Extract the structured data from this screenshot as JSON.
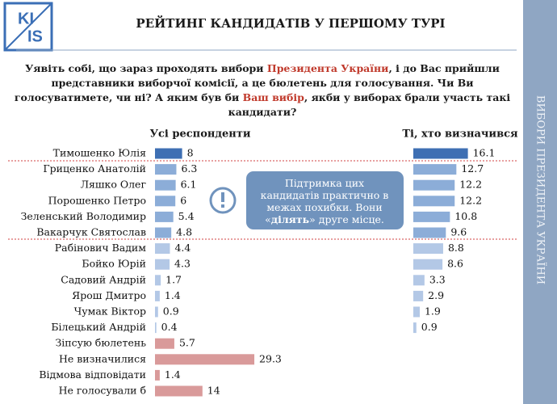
{
  "logo": [
    "KI",
    "IS"
  ],
  "title": "РЕЙТИНГ КАНДИДАТІВ У ПЕРШОМУ ТУРІ",
  "side_label": "ВИБОРИ ПРЕЗИДЕНТА УКРАЇНИ",
  "question": [
    [
      {
        "text": "Уявіть собі, що зараз проходять вибори ",
        "highlight": false
      },
      {
        "text": "Президента України",
        "highlight": true
      },
      {
        "text": ", і до Вас прийшли",
        "highlight": false
      }
    ],
    [
      {
        "text": "представники виборчої комісії, а це бюлетень для голосування. Чи Ви",
        "highlight": false
      }
    ],
    [
      {
        "text": "голосуватимете, чи ні? А яким був би ",
        "highlight": false
      },
      {
        "text": "Ваш вибір",
        "highlight": true
      },
      {
        "text": ", якби у виборах брали участь такі",
        "highlight": false
      }
    ],
    [
      {
        "text": "кандидати?",
        "highlight": false
      }
    ]
  ],
  "callout": [
    [
      {
        "text": "Підтримка цих",
        "bold": false
      }
    ],
    [
      {
        "text": "кандидатів практично в",
        "bold": false
      }
    ],
    [
      {
        "text": "межах похибки. Вони",
        "bold": false
      }
    ],
    [
      {
        "text": "«",
        "bold": false
      },
      {
        "text": "ділять",
        "bold": true
      },
      {
        "text": "» друге місце.",
        "bold": false
      }
    ]
  ],
  "chart_data": [
    {
      "type": "bar",
      "orientation": "horizontal",
      "title": "Усі респонденти",
      "categories": [
        "Тимошенко Юлія",
        "Гриценко Анатолій",
        "Ляшко Олег",
        "Порошенко Петро",
        "Зеленський Володимир",
        "Вакарчук Святослав",
        "Рабінович Вадим",
        "Бойко Юрій",
        "Садовий Андрій",
        "Ярош Дмитро",
        "Чумак Віктор",
        "Білецький Андрій",
        "Зіпсую бюлетень",
        "Не визначилися",
        "Відмова відповідати",
        "Не голосували б"
      ],
      "values": [
        8,
        6.3,
        6.1,
        6,
        5.4,
        4.8,
        4.4,
        4.3,
        1.7,
        1.4,
        0.9,
        0.4,
        5.7,
        29.3,
        1.4,
        14
      ],
      "colors": [
        "#3e6fb3",
        "#8cadd8",
        "#8cadd8",
        "#8cadd8",
        "#8cadd8",
        "#8cadd8",
        "#b3c8e6",
        "#b3c8e6",
        "#b3c8e6",
        "#b3c8e6",
        "#b3c8e6",
        "#b3c8e6",
        "#d99a9a",
        "#d99a9a",
        "#d99a9a",
        "#d99a9a"
      ],
      "xlim": [
        0,
        30
      ]
    },
    {
      "type": "bar",
      "orientation": "horizontal",
      "title": "Ті, хто визначився",
      "values": [
        16.1,
        12.7,
        12.2,
        12.2,
        10.8,
        9.6,
        8.8,
        8.6,
        3.3,
        2.9,
        1.9,
        0.9
      ],
      "colors": [
        "#3e6fb3",
        "#8cadd8",
        "#8cadd8",
        "#8cadd8",
        "#8cadd8",
        "#8cadd8",
        "#b3c8e6",
        "#b3c8e6",
        "#b3c8e6",
        "#b3c8e6",
        "#b3c8e6",
        "#b3c8e6"
      ],
      "xlim": [
        0,
        30
      ]
    }
  ]
}
